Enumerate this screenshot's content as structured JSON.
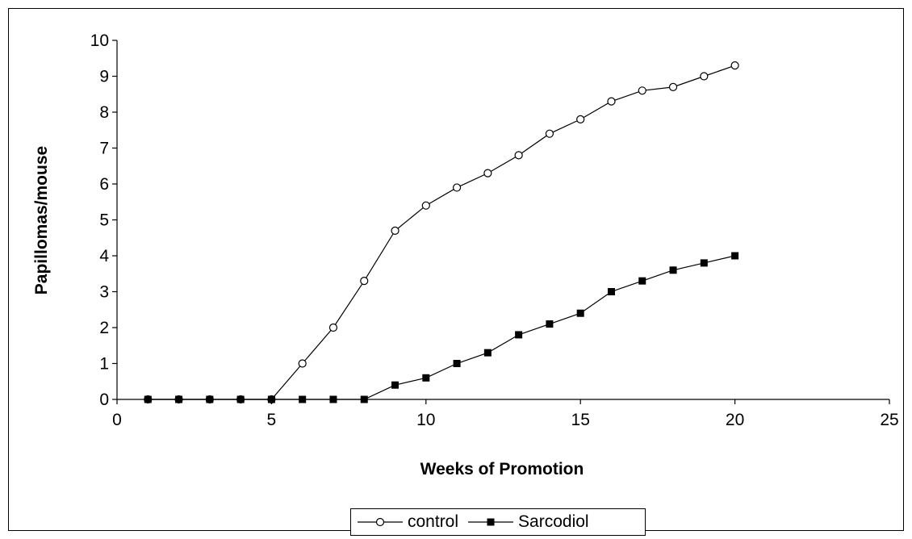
{
  "chart_data": {
    "type": "line",
    "xlabel": "Weeks of Promotion",
    "ylabel": "Papillomas/mouse",
    "xlim": [
      0,
      25
    ],
    "ylim": [
      0,
      10
    ],
    "xticks": [
      "0",
      "5",
      "10",
      "15",
      "20",
      "25"
    ],
    "yticks": [
      "0",
      "1",
      "2",
      "3",
      "4",
      "5",
      "6",
      "7",
      "8",
      "9",
      "10"
    ],
    "grid": false,
    "legend_position": "bottom-center",
    "x": [
      1,
      2,
      3,
      4,
      5,
      6,
      7,
      8,
      9,
      10,
      11,
      12,
      13,
      14,
      15,
      16,
      17,
      18,
      19,
      20
    ],
    "series": [
      {
        "name": "control",
        "marker": "open-circle",
        "color": "#000000",
        "values": [
          0,
          0,
          0,
          0,
          0,
          1.0,
          2.0,
          3.3,
          4.7,
          5.4,
          5.9,
          6.3,
          6.8,
          7.4,
          7.8,
          8.3,
          8.6,
          8.7,
          9.0,
          9.3
        ]
      },
      {
        "name": "Sarcodiol",
        "marker": "filled-square",
        "color": "#000000",
        "values": [
          0,
          0,
          0,
          0,
          0,
          0,
          0,
          0,
          0.4,
          0.6,
          1.0,
          1.3,
          1.8,
          2.1,
          2.4,
          3.0,
          3.3,
          3.6,
          3.8,
          4.0
        ]
      }
    ]
  }
}
